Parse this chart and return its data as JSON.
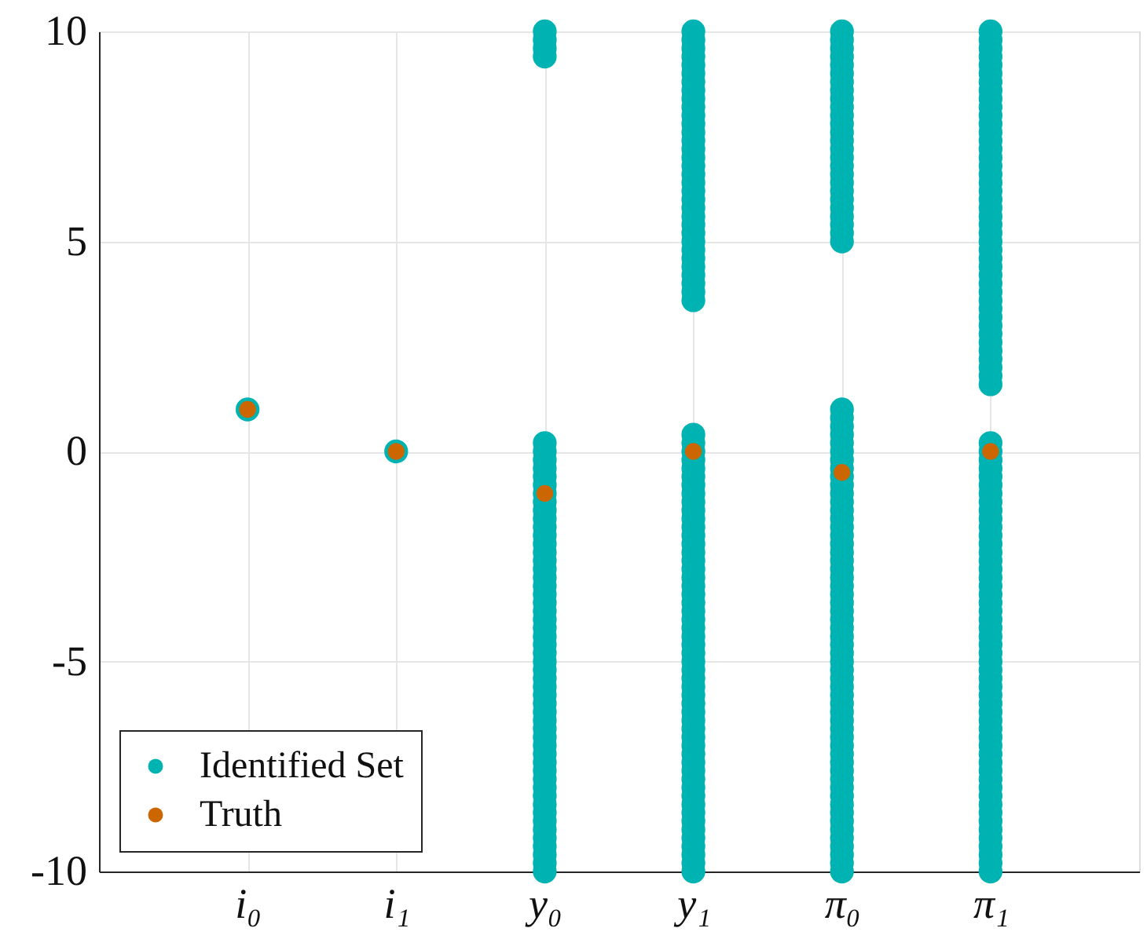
{
  "chart_data": {
    "type": "scatter",
    "categories": [
      "i₀",
      "i₁",
      "y₀",
      "y₁",
      "π₀",
      "π₁"
    ],
    "ylim": [
      -10,
      10
    ],
    "yticks": [
      -10,
      -5,
      0,
      5,
      10
    ],
    "grid": true,
    "legend": "bottom left",
    "marker": "circle",
    "series": [
      {
        "name": "Identified Set",
        "color": "#00b3b3",
        "x": [
          "i₀",
          "i₁",
          "y₀",
          "y₀",
          "y₀",
          "y₀",
          "y₀",
          "y₀",
          "y₀",
          "y₀",
          "y₀",
          "y₀",
          "y₀",
          "y₀",
          "y₀",
          "y₀",
          "y₀",
          "y₀",
          "y₀",
          "y₀",
          "y₀",
          "y₀",
          "y₀",
          "y₀",
          "y₀",
          "y₀",
          "y₀",
          "y₀",
          "y₀",
          "y₀",
          "y₀",
          "y₀",
          "y₀",
          "y₀",
          "y₀",
          "y₀",
          "y₀",
          "y₀",
          "y₀",
          "y₀",
          "y₀",
          "y₀",
          "y₀",
          "y₀",
          "y₀",
          "y₀",
          "y₀",
          "y₀",
          "y₀",
          "y₀",
          "y₀",
          "y₀",
          "y₀",
          "y₀",
          "y₀",
          "y₀",
          "y₀",
          "y₀",
          "y₁",
          "y₁",
          "y₁",
          "y₁",
          "y₁",
          "y₁",
          "y₁",
          "y₁",
          "y₁",
          "y₁",
          "y₁",
          "y₁",
          "y₁",
          "y₁",
          "y₁",
          "y₁",
          "y₁",
          "y₁",
          "y₁",
          "y₁",
          "y₁",
          "y₁",
          "y₁",
          "y₁",
          "y₁",
          "y₁",
          "y₁",
          "y₁",
          "y₁",
          "y₁",
          "y₁",
          "y₁",
          "y₁",
          "y₁",
          "y₁",
          "y₁",
          "y₁",
          "y₁",
          "y₁",
          "y₁",
          "y₁",
          "y₁",
          "y₁",
          "y₁",
          "y₁",
          "y₁",
          "y₁",
          "y₁",
          "y₁",
          "y₁",
          "y₁",
          "y₁",
          "y₁",
          "y₁",
          "y₁",
          "y₁",
          "y₁",
          "y₁",
          "y₁",
          "y₁",
          "y₁",
          "y₁",
          "y₁",
          "y₁",
          "y₁",
          "y₁",
          "y₁",
          "y₁",
          "y₁",
          "y₁",
          "y₁",
          "y₁",
          "y₁",
          "y₁",
          "y₁",
          "y₁",
          "y₁",
          "y₁",
          "y₁",
          "y₁",
          "y₁",
          "y₁",
          "y₁",
          "y₁",
          "y₁",
          "y₁",
          "π₀",
          "π₀",
          "π₀",
          "π₀",
          "π₀",
          "π₀",
          "π₀",
          "π₀",
          "π₀",
          "π₀",
          "π₀",
          "π₀",
          "π₀",
          "π₀",
          "π₀",
          "π₀",
          "π₀",
          "π₀",
          "π₀",
          "π₀",
          "π₀",
          "π₀",
          "π₀",
          "π₀",
          "π₀",
          "π₀",
          "π₀",
          "π₀",
          "π₀",
          "π₀",
          "π₀",
          "π₀",
          "π₀",
          "π₀",
          "π₀",
          "π₀",
          "π₀",
          "π₀",
          "π₀",
          "π₀",
          "π₀",
          "π₀",
          "π₀",
          "π₀",
          "π₀",
          "π₀",
          "π₀",
          "π₀",
          "π₀",
          "π₀",
          "π₀",
          "π₀",
          "π₀",
          "π₀",
          "π₀",
          "π₀",
          "π₀",
          "π₀",
          "π₀",
          "π₀",
          "π₀",
          "π₀",
          "π₀",
          "π₀",
          "π₀",
          "π₀",
          "π₀",
          "π₀",
          "π₀",
          "π₀",
          "π₀",
          "π₀",
          "π₀",
          "π₀",
          "π₀",
          "π₀",
          "π₀",
          "π₀",
          "π₀",
          "π₀",
          "π₀",
          "π₀",
          "π₁",
          "π₁",
          "π₁",
          "π₁",
          "π₁",
          "π₁",
          "π₁",
          "π₁",
          "π₁",
          "π₁",
          "π₁",
          "π₁",
          "π₁",
          "π₁",
          "π₁",
          "π₁",
          "π₁",
          "π₁",
          "π₁",
          "π₁",
          "π₁",
          "π₁",
          "π₁",
          "π₁",
          "π₁",
          "π₁",
          "π₁",
          "π₁",
          "π₁",
          "π₁",
          "π₁",
          "π₁",
          "π₁",
          "π₁",
          "π₁",
          "π₁",
          "π₁",
          "π₁",
          "π₁",
          "π₁",
          "π₁",
          "π₁",
          "π₁",
          "π₁",
          "π₁",
          "π₁",
          "π₁",
          "π₁",
          "π₁",
          "π₁",
          "π₁",
          "π₁",
          "π₁",
          "π₁",
          "π₁",
          "π₁",
          "π₁",
          "π₁",
          "π₁",
          "π₁",
          "π₁",
          "π₁",
          "π₁",
          "π₁",
          "π₁",
          "π₁",
          "π₁",
          "π₁",
          "π₁",
          "π₁",
          "π₁",
          "π₁",
          "π₁",
          "π₁",
          "π₁",
          "π₁",
          "π₁",
          "π₁",
          "π₁",
          "π₁",
          "π₁",
          "π₁",
          "π₁",
          "π₁",
          "π₁",
          "π₁",
          "π₁",
          "π₁",
          "π₁",
          "π₁",
          "π₁",
          "π₁",
          "π₁",
          "π₁",
          "π₁"
        ],
        "values": [
          1,
          0,
          -10,
          -9.8,
          -9.6,
          -9.4,
          -9.2,
          -9,
          -8.8,
          -8.6,
          -8.4,
          -8.2,
          -8,
          -7.8,
          -7.6,
          -7.4,
          -7.2,
          -7,
          -6.8,
          -6.6,
          -6.4,
          -6.2,
          -6,
          -5.8,
          -5.6,
          -5.4,
          -5.2,
          -5,
          -4.8,
          -4.6,
          -4.4,
          -4.2,
          -4,
          -3.8,
          -3.6,
          -3.4,
          -3.2,
          -3,
          -2.8,
          -2.6,
          -2.4,
          -2.2,
          -2,
          -1.8,
          -1.6,
          -1.4,
          -1.2,
          -1,
          -0.8,
          -0.6,
          -0.4,
          -0.2,
          0,
          0.2,
          9.4,
          9.6,
          9.8,
          10,
          -10,
          -9.8,
          -9.6,
          -9.4,
          -9.2,
          -9,
          -8.8,
          -8.6,
          -8.4,
          -8.2,
          -8,
          -7.8,
          -7.6,
          -7.4,
          -7.2,
          -7,
          -6.8,
          -6.6,
          -6.4,
          -6.2,
          -6,
          -5.8,
          -5.6,
          -5.4,
          -5.2,
          -5,
          -4.8,
          -4.6,
          -4.4,
          -4.2,
          -4,
          -3.8,
          -3.6,
          -3.4,
          -3.2,
          -3,
          -2.8,
          -2.6,
          -2.4,
          -2.2,
          -2,
          -1.8,
          -1.6,
          -1.4,
          -1.2,
          -1,
          -0.8,
          -0.6,
          -0.4,
          -0.2,
          0,
          0.2,
          0.4,
          3.6,
          3.8,
          4,
          4.2,
          4.4,
          4.6,
          4.8,
          5,
          5.2,
          5.4,
          5.6,
          5.8,
          6,
          6.2,
          6.4,
          6.6,
          6.8,
          7,
          7.2,
          7.4,
          7.6,
          7.8,
          8,
          8.2,
          8.4,
          8.6,
          8.8,
          9,
          9.2,
          9.4,
          9.6,
          9.8,
          10,
          -10,
          -9.8,
          -9.6,
          -9.4,
          -9.2,
          -9,
          -8.8,
          -8.6,
          -8.4,
          -8.2,
          -8,
          -7.8,
          -7.6,
          -7.4,
          -7.2,
          -7,
          -6.8,
          -6.6,
          -6.4,
          -6.2,
          -6,
          -5.8,
          -5.6,
          -5.4,
          -5.2,
          -5,
          -4.8,
          -4.6,
          -4.4,
          -4.2,
          -4,
          -3.8,
          -3.6,
          -3.4,
          -3.2,
          -3,
          -2.8,
          -2.6,
          -2.4,
          -2.2,
          -2,
          -1.8,
          -1.6,
          -1.4,
          -1.2,
          -1,
          -0.8,
          -0.6,
          -0.4,
          -0.2,
          0,
          0.2,
          0.4,
          0.6,
          0.8,
          1,
          5,
          5.2,
          5.4,
          5.6,
          5.8,
          6,
          6.2,
          6.4,
          6.6,
          6.8,
          7,
          7.2,
          7.4,
          7.6,
          7.8,
          8,
          8.2,
          8.4,
          8.6,
          8.8,
          9,
          9.2,
          9.4,
          9.6,
          9.8,
          10,
          -10,
          -9.8,
          -9.6,
          -9.4,
          -9.2,
          -9,
          -8.8,
          -8.6,
          -8.4,
          -8.2,
          -8,
          -7.8,
          -7.6,
          -7.4,
          -7.2,
          -7,
          -6.8,
          -6.6,
          -6.4,
          -6.2,
          -6,
          -5.8,
          -5.6,
          -5.4,
          -5.2,
          -5,
          -4.8,
          -4.6,
          -4.4,
          -4.2,
          -4,
          -3.8,
          -3.6,
          -3.4,
          -3.2,
          -3,
          -2.8,
          -2.6,
          -2.4,
          -2.2,
          -2,
          -1.8,
          -1.6,
          -1.4,
          -1.2,
          -1,
          -0.8,
          -0.6,
          -0.4,
          -0.2,
          0,
          0.2,
          1.6,
          1.8,
          2,
          2.2,
          2.4,
          2.6,
          2.8,
          3,
          3.2,
          3.4,
          3.6,
          3.8,
          4,
          4.2,
          4.4,
          4.6,
          4.8,
          5,
          5.2,
          5.4,
          5.6,
          5.8,
          6,
          6.2,
          6.4,
          6.6,
          6.8,
          7,
          7.2,
          7.4,
          7.6,
          7.8,
          8,
          8.2,
          8.4,
          8.6,
          8.8,
          9,
          9.2,
          9.4,
          9.6,
          9.8,
          10
        ]
      },
      {
        "name": "Truth",
        "color": "#cc6600",
        "values": [
          1,
          0,
          -1,
          0,
          -0.5,
          0
        ]
      }
    ]
  }
}
